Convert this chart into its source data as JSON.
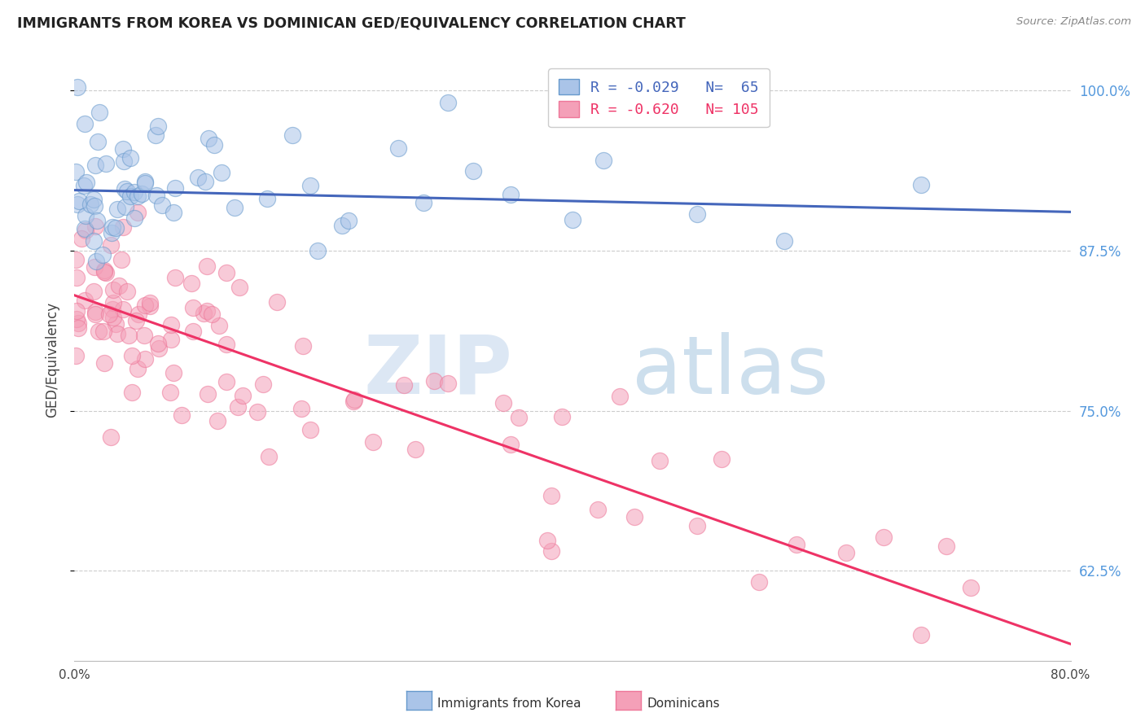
{
  "title": "IMMIGRANTS FROM KOREA VS DOMINICAN GED/EQUIVALENCY CORRELATION CHART",
  "source": "Source: ZipAtlas.com",
  "ylabel": "GED/Equivalency",
  "xmin": 0.0,
  "xmax": 0.8,
  "ymin": 0.555,
  "ymax": 1.025,
  "yticks": [
    0.625,
    0.75,
    0.875,
    1.0
  ],
  "ytick_labels": [
    "62.5%",
    "75.0%",
    "87.5%",
    "100.0%"
  ],
  "korea_R": -0.029,
  "korea_N": 65,
  "dom_R": -0.62,
  "dom_N": 105,
  "korea_color": "#aac4e8",
  "dom_color": "#f4a0b8",
  "korea_edge_color": "#6699cc",
  "dom_edge_color": "#ee7799",
  "korea_line_color": "#4466bb",
  "dom_line_color": "#ee3366",
  "legend_label_korea": "Immigrants from Korea",
  "legend_label_dom": "Dominicans",
  "watermark_part1": "ZIP",
  "watermark_part2": "atlas",
  "background_color": "#ffffff",
  "grid_color": "#cccccc",
  "right_axis_color": "#5599dd",
  "title_color": "#222222",
  "source_color": "#888888",
  "korea_line_y0": 0.922,
  "korea_line_y1": 0.905,
  "dom_line_y0": 0.84,
  "dom_line_y1": 0.568
}
